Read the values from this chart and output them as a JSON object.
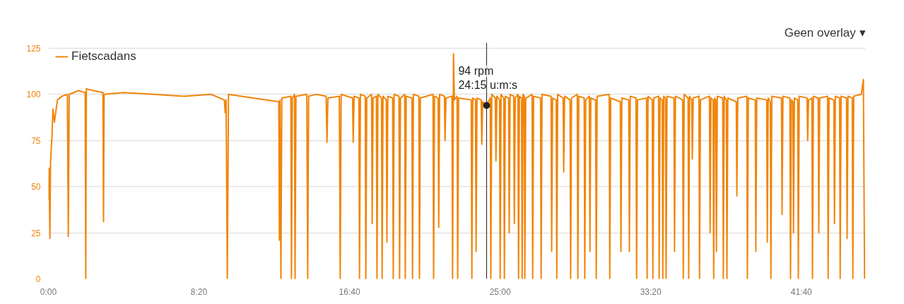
{
  "chart_data": {
    "type": "line",
    "legend": "top left",
    "grid": "y",
    "marker": "none",
    "line_style": "solid",
    "xlim": [
      0,
      2713
    ],
    "ylim": [
      0,
      128
    ],
    "xticks": [
      {
        "value": 0,
        "label": "0:00"
      },
      {
        "value": 500,
        "label": "8:20"
      },
      {
        "value": 1000,
        "label": "16:40"
      },
      {
        "value": 1500,
        "label": "25:00"
      },
      {
        "value": 2000,
        "label": "33:20"
      },
      {
        "value": 2500,
        "label": "41:40"
      }
    ],
    "yticks": [
      0,
      25,
      50,
      75,
      100,
      125
    ],
    "ref_lines": [
      {
        "axis": "x",
        "value": 1455,
        "label": null,
        "color": "#222222"
      }
    ],
    "annotations": [
      {
        "text": "94 rpm",
        "x": 1455,
        "y": 94
      },
      {
        "text": "24:15 u:m:s",
        "x": 1455,
        "y": 94
      },
      "Geen overlay ▾"
    ],
    "series": [
      {
        "name": "Fietscadans",
        "color": "#f0850a",
        "x": [
          0,
          2,
          5,
          7,
          12,
          15,
          20,
          30,
          45,
          63,
          66,
          69,
          100,
          122,
          124,
          126,
          150,
          181,
          183,
          185,
          250,
          350,
          450,
          540,
          584,
          587,
          590,
          594,
          598,
          680,
          765,
          767,
          769,
          772,
          775,
          805,
          807,
          810,
          817,
          819,
          822,
          858,
          861,
          864,
          890,
          922,
          925,
          928,
          966,
          969,
          972,
          1010,
          1012,
          1015,
          1031,
          1033,
          1036,
          1052,
          1054,
          1057,
          1073,
          1075,
          1078,
          1089,
          1091,
          1094,
          1106,
          1108,
          1111,
          1122,
          1124,
          1127,
          1143,
          1145,
          1148,
          1164,
          1166,
          1169,
          1183,
          1185,
          1188,
          1207,
          1209,
          1212,
          1230,
          1232,
          1235,
          1277,
          1279,
          1282,
          1294,
          1296,
          1299,
          1315,
          1317,
          1320,
          1340,
          1342,
          1345,
          1348,
          1357,
          1359,
          1362,
          1404,
          1406,
          1409,
          1418,
          1420,
          1423,
          1437,
          1439,
          1442,
          1455,
          1467,
          1469,
          1472,
          1484,
          1486,
          1489,
          1498,
          1500,
          1503,
          1512,
          1514,
          1517,
          1528,
          1530,
          1533,
          1545,
          1547,
          1550,
          1559,
          1561,
          1564,
          1571,
          1573,
          1576,
          1580,
          1582,
          1585,
          1606,
          1608,
          1611,
          1634,
          1636,
          1639,
          1669,
          1671,
          1674,
          1686,
          1688,
          1691,
          1709,
          1711,
          1714,
          1732,
          1734,
          1737,
          1756,
          1758,
          1761,
          1779,
          1781,
          1784,
          1796,
          1798,
          1801,
          1817,
          1819,
          1822,
          1862,
          1864,
          1867,
          1899,
          1901,
          1904,
          1927,
          1929,
          1932,
          1951,
          1953,
          1956,
          1986,
          1988,
          1991,
          2005,
          2007,
          2010,
          2026,
          2028,
          2031,
          2038,
          2040,
          2043,
          2049,
          2051,
          2054,
          2077,
          2079,
          2082,
          2106,
          2108,
          2111,
          2124,
          2126,
          2129,
          2136,
          2138,
          2141,
          2160,
          2162,
          2165,
          2195,
          2197,
          2200,
          2207,
          2209,
          2212,
          2216,
          2218,
          2221,
          2239,
          2241,
          2244,
          2251,
          2253,
          2256,
          2284,
          2286,
          2289,
          2319,
          2321,
          2324,
          2347,
          2349,
          2352,
          2385,
          2387,
          2390,
          2397,
          2399,
          2402,
          2434,
          2436,
          2439,
          2462,
          2464,
          2467,
          2472,
          2474,
          2477,
          2488,
          2490,
          2493,
          2519,
          2521,
          2524,
          2535,
          2537,
          2540,
          2556,
          2558,
          2561,
          2587,
          2589,
          2592,
          2608,
          2610,
          2613,
          2627,
          2629,
          2632,
          2650,
          2652,
          2655,
          2669,
          2671,
          2674,
          2699,
          2706,
          2710
        ],
        "values": [
          43,
          60,
          22,
          63,
          78,
          92,
          85,
          97,
          99,
          100,
          23,
          100,
          102,
          101,
          0,
          103,
          102,
          101,
          31,
          100,
          101,
          100,
          99,
          100,
          97,
          90,
          97,
          0,
          100,
          98,
          96,
          21,
          97,
          0,
          98,
          99,
          0,
          98,
          100,
          0,
          99,
          100,
          0,
          99,
          100,
          99,
          74,
          98,
          99,
          0,
          100,
          98,
          74,
          99,
          98,
          0,
          100,
          99,
          0,
          98,
          100,
          30,
          98,
          99,
          0,
          100,
          98,
          0,
          99,
          97,
          20,
          99,
          98,
          0,
          100,
          99,
          0,
          98,
          100,
          0,
          99,
          98,
          0,
          100,
          99,
          0,
          98,
          100,
          0,
          99,
          98,
          28,
          100,
          99,
          75,
          98,
          99,
          0,
          122,
          97,
          99,
          0,
          98,
          97,
          0,
          98,
          97,
          15,
          98,
          97,
          73,
          96,
          94,
          98,
          0,
          100,
          98,
          64,
          99,
          97,
          0,
          100,
          98,
          0,
          99,
          98,
          25,
          100,
          99,
          30,
          98,
          100,
          0,
          99,
          98,
          0,
          100,
          99,
          0,
          98,
          100,
          0,
          99,
          98,
          0,
          100,
          99,
          15,
          98,
          97,
          0,
          100,
          98,
          58,
          99,
          97,
          0,
          98,
          100,
          0,
          99,
          98,
          0,
          97,
          99,
          15,
          98,
          97,
          0,
          99,
          100,
          0,
          98,
          96,
          15,
          98,
          97,
          15,
          99,
          98,
          0,
          97,
          98,
          0,
          99,
          97,
          0,
          98,
          99,
          0,
          98,
          97,
          0,
          99,
          98,
          0,
          99,
          98,
          15,
          99,
          97,
          0,
          100,
          98,
          0,
          99,
          97,
          65,
          98,
          99,
          0,
          97,
          99,
          25,
          98,
          97,
          0,
          98,
          97,
          15,
          99,
          98,
          0,
          99,
          97,
          0,
          98,
          96,
          45,
          98,
          99,
          0,
          98,
          97,
          15,
          98,
          97,
          20,
          98,
          96,
          0,
          99,
          98,
          35,
          99,
          98,
          0,
          97,
          96,
          25,
          98,
          97,
          0,
          99,
          98,
          75,
          97,
          98,
          0,
          99,
          98,
          25,
          98,
          99,
          0,
          98,
          97,
          30,
          99,
          98,
          0,
          99,
          98,
          22,
          99,
          98,
          0,
          99,
          100,
          108,
          0
        ]
      }
    ]
  }
}
